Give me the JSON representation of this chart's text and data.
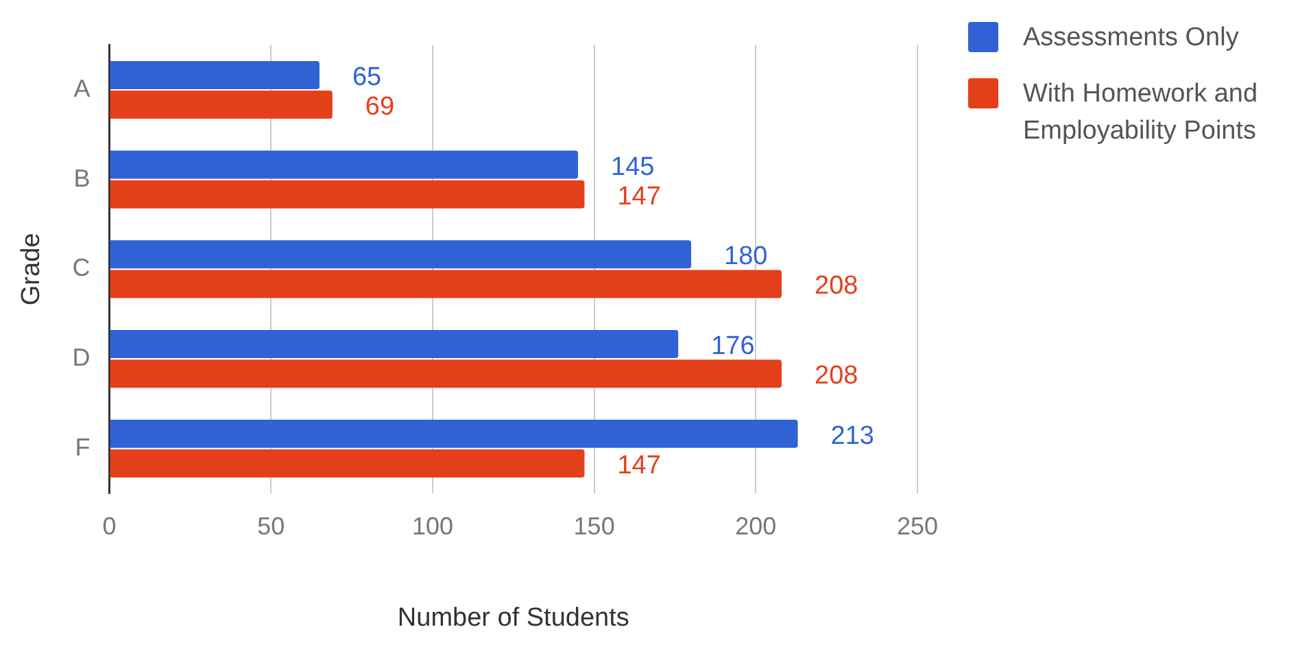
{
  "chart_data": {
    "type": "bar",
    "orientation": "horizontal",
    "xlabel": "Number of Students",
    "ylabel": "Grade",
    "categories": [
      "A",
      "B",
      "C",
      "D",
      "F"
    ],
    "series": [
      {
        "name": "Assessments Only",
        "color": "#3062d6",
        "values": [
          65,
          145,
          180,
          176,
          213
        ]
      },
      {
        "name": "With Homework and Employability Points",
        "color": "#e5401c",
        "values": [
          69,
          147,
          208,
          208,
          147
        ]
      }
    ],
    "xlim": [
      0,
      250
    ],
    "xticks": [
      0,
      50,
      100,
      150,
      200,
      250
    ],
    "grid": "x",
    "legend": "right",
    "data_labels": true
  }
}
